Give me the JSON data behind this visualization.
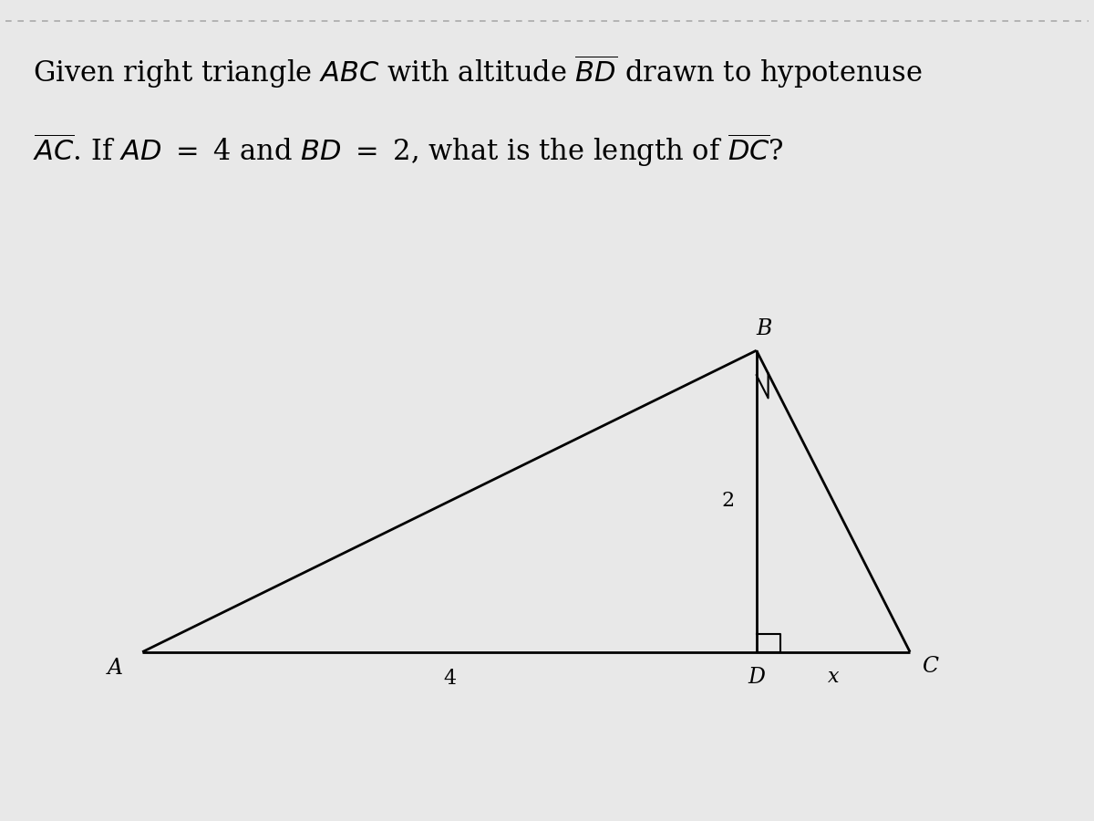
{
  "bg_color": "#e8e8e8",
  "text_color": "#000000",
  "A": [
    0.0,
    0.0
  ],
  "D": [
    4.0,
    0.0
  ],
  "C": [
    5.0,
    0.0
  ],
  "B": [
    4.0,
    2.0
  ],
  "AD_label": "4",
  "BD_label": "2",
  "DC_label": "x",
  "label_A": "A",
  "label_B": "B",
  "label_C": "C",
  "label_D": "D",
  "fig_width": 12.0,
  "fig_height": 9.0,
  "line1": "Given right triangle $\\mathit{ABC}$ with altitude $\\overline{\\mathit{BD}}$ drawn to hypotenuse",
  "line2": "$\\overline{\\mathit{AC}}$. If $\\mathit{AD}$ $=$ 4 and $\\mathit{BD}$ $=$ 2, what is the length of $\\overline{\\mathit{DC}}$?",
  "fontsize_text": 22,
  "fontsize_label": 17,
  "fontsize_num": 16,
  "lw": 2.0,
  "dash_color": "#aaaaaa"
}
